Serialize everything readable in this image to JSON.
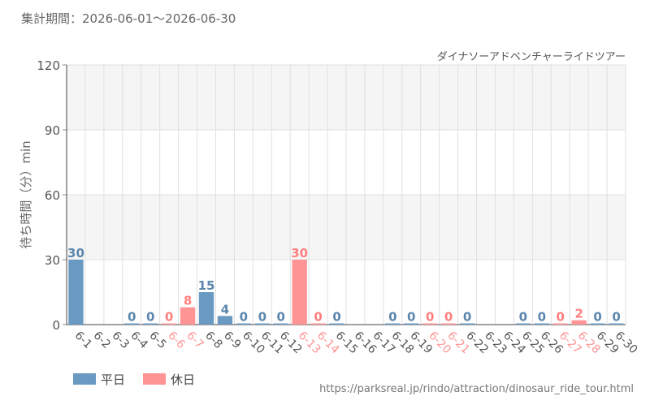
{
  "header": {
    "period": "集計期間：2026-06-01～2026-06-30"
  },
  "source": {
    "url": "https://parksreal.jp/rindo/attraction/dinosaur_ride_tour.html"
  },
  "colors": {
    "weekday": "#6a9ac2",
    "holiday": "#ff9494",
    "weekday_label": "#5b86ad",
    "holiday_label": "#ff7f7f",
    "band": "#f5f5f5",
    "grid": "#e0e0e0"
  },
  "chart_data": {
    "type": "bar",
    "title": "ダイナソーアドベンチャーライドツアー",
    "ylabel": "待ち時間（分）min",
    "ylim": [
      0,
      120
    ],
    "yticks": [
      0,
      30,
      60,
      90,
      120
    ],
    "categories": [
      "6-1",
      "6-2",
      "6-3",
      "6-4",
      "6-5",
      "6-6",
      "6-7",
      "6-8",
      "6-9",
      "6-10",
      "6-11",
      "6-12",
      "6-13",
      "6-14",
      "6-15",
      "6-16",
      "6-17",
      "6-18",
      "6-19",
      "6-20",
      "6-21",
      "6-22",
      "6-23",
      "6-24",
      "6-25",
      "6-26",
      "6-27",
      "6-28",
      "6-29",
      "6-30"
    ],
    "values": [
      30,
      null,
      null,
      0,
      0,
      0,
      8,
      15,
      4,
      0,
      0,
      0,
      30,
      0,
      0,
      null,
      null,
      0,
      0,
      0,
      0,
      0,
      null,
      null,
      0,
      0,
      0,
      2,
      0,
      0
    ],
    "day_type": [
      "weekday",
      "weekday",
      "weekday",
      "weekday",
      "weekday",
      "holiday",
      "holiday",
      "weekday",
      "weekday",
      "weekday",
      "weekday",
      "weekday",
      "holiday",
      "holiday",
      "weekday",
      "weekday",
      "weekday",
      "weekday",
      "weekday",
      "holiday",
      "holiday",
      "weekday",
      "weekday",
      "weekday",
      "weekday",
      "weekday",
      "holiday",
      "holiday",
      "weekday",
      "weekday"
    ],
    "legend": [
      {
        "key": "weekday",
        "label": "平日"
      },
      {
        "key": "holiday",
        "label": "休日"
      }
    ],
    "legend_position": "bottom-left"
  }
}
